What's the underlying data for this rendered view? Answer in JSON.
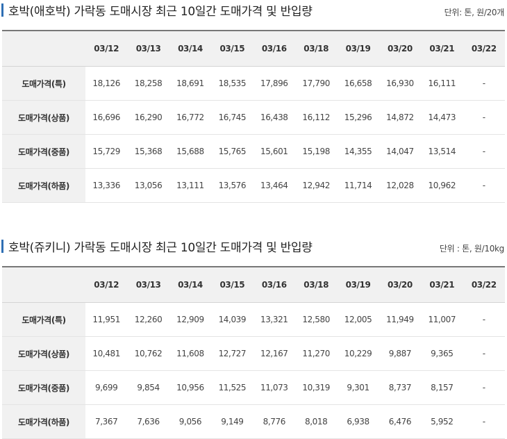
{
  "headers": [
    "03/12",
    "03/13",
    "03/14",
    "03/15",
    "03/16",
    "03/18",
    "03/19",
    "03/20",
    "03/21",
    "03/22"
  ],
  "sections": [
    {
      "title": "호박(애호박) 가락동 도매시장 최근 10일간 도매가격 및 반입량",
      "unit": "단위: 톤, 원/20개",
      "rows": [
        {
          "label": "도매가격(특)",
          "values": [
            "18,126",
            "18,258",
            "18,691",
            "18,535",
            "17,896",
            "17,790",
            "16,658",
            "16,930",
            "16,111",
            "-"
          ]
        },
        {
          "label": "도매가격(상품)",
          "values": [
            "16,696",
            "16,290",
            "16,772",
            "16,745",
            "16,438",
            "16,112",
            "15,296",
            "14,872",
            "14,473",
            "-"
          ]
        },
        {
          "label": "도매가격(중품)",
          "values": [
            "15,729",
            "15,368",
            "15,688",
            "15,765",
            "15,601",
            "15,198",
            "14,355",
            "14,047",
            "13,514",
            "-"
          ]
        },
        {
          "label": "도매가격(하품)",
          "values": [
            "13,336",
            "13,056",
            "13,111",
            "13,576",
            "13,464",
            "12,942",
            "11,714",
            "12,028",
            "10,962",
            "-"
          ]
        }
      ]
    },
    {
      "title": "호박(쥬키니) 가락동 도매시장 최근 10일간 도매가격 및 반입량",
      "unit": "단위 : 톤, 원/10kg",
      "rows": [
        {
          "label": "도매가격(특)",
          "values": [
            "11,951",
            "12,260",
            "12,909",
            "14,039",
            "13,321",
            "12,580",
            "12,005",
            "11,949",
            "11,007",
            "-"
          ]
        },
        {
          "label": "도매가격(상품)",
          "values": [
            "10,481",
            "10,762",
            "11,608",
            "12,727",
            "12,167",
            "11,270",
            "10,229",
            "9,887",
            "9,365",
            "-"
          ]
        },
        {
          "label": "도매가격(중품)",
          "values": [
            "9,699",
            "9,854",
            "10,956",
            "11,525",
            "11,073",
            "10,319",
            "9,301",
            "8,737",
            "8,157",
            "-"
          ]
        },
        {
          "label": "도매가격(하품)",
          "values": [
            "7,367",
            "7,636",
            "9,056",
            "9,149",
            "8,776",
            "8,018",
            "6,938",
            "6,476",
            "5,952",
            "-"
          ]
        }
      ]
    }
  ]
}
